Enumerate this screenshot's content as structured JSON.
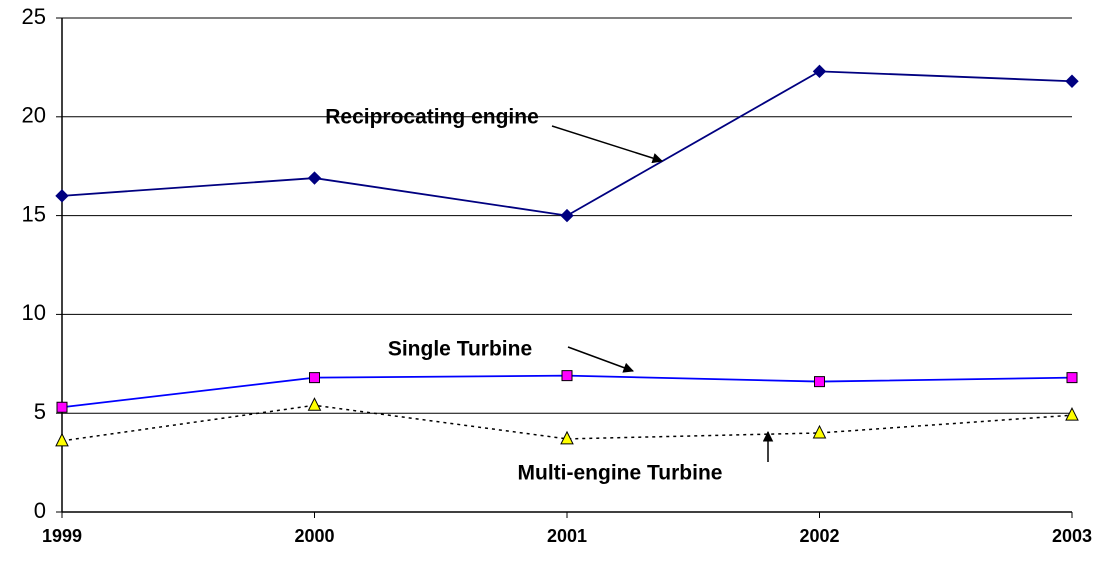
{
  "chart_data": {
    "type": "line",
    "categories": [
      "1999",
      "2000",
      "2001",
      "2002",
      "2003"
    ],
    "series": [
      {
        "name": "Reciprocating engine",
        "color": "#000080",
        "marker": "diamond",
        "marker_color": "#000080",
        "dash": "solid",
        "values": [
          16.0,
          16.9,
          15.0,
          22.3,
          21.8
        ]
      },
      {
        "name": "Single Turbine",
        "color": "#0000ff",
        "marker": "square",
        "marker_color": "#ff00ff",
        "dash": "solid",
        "values": [
          5.3,
          6.8,
          6.9,
          6.6,
          6.8
        ]
      },
      {
        "name": "Multi-engine Turbine",
        "color": "#000000",
        "marker": "triangle",
        "marker_color": "#ffff00",
        "dash": "dotted",
        "values": [
          3.6,
          5.4,
          3.7,
          4.0,
          4.9
        ]
      }
    ],
    "ylim": [
      0,
      25
    ],
    "yticks": [
      0,
      5,
      10,
      15,
      20,
      25
    ],
    "grid": true
  }
}
